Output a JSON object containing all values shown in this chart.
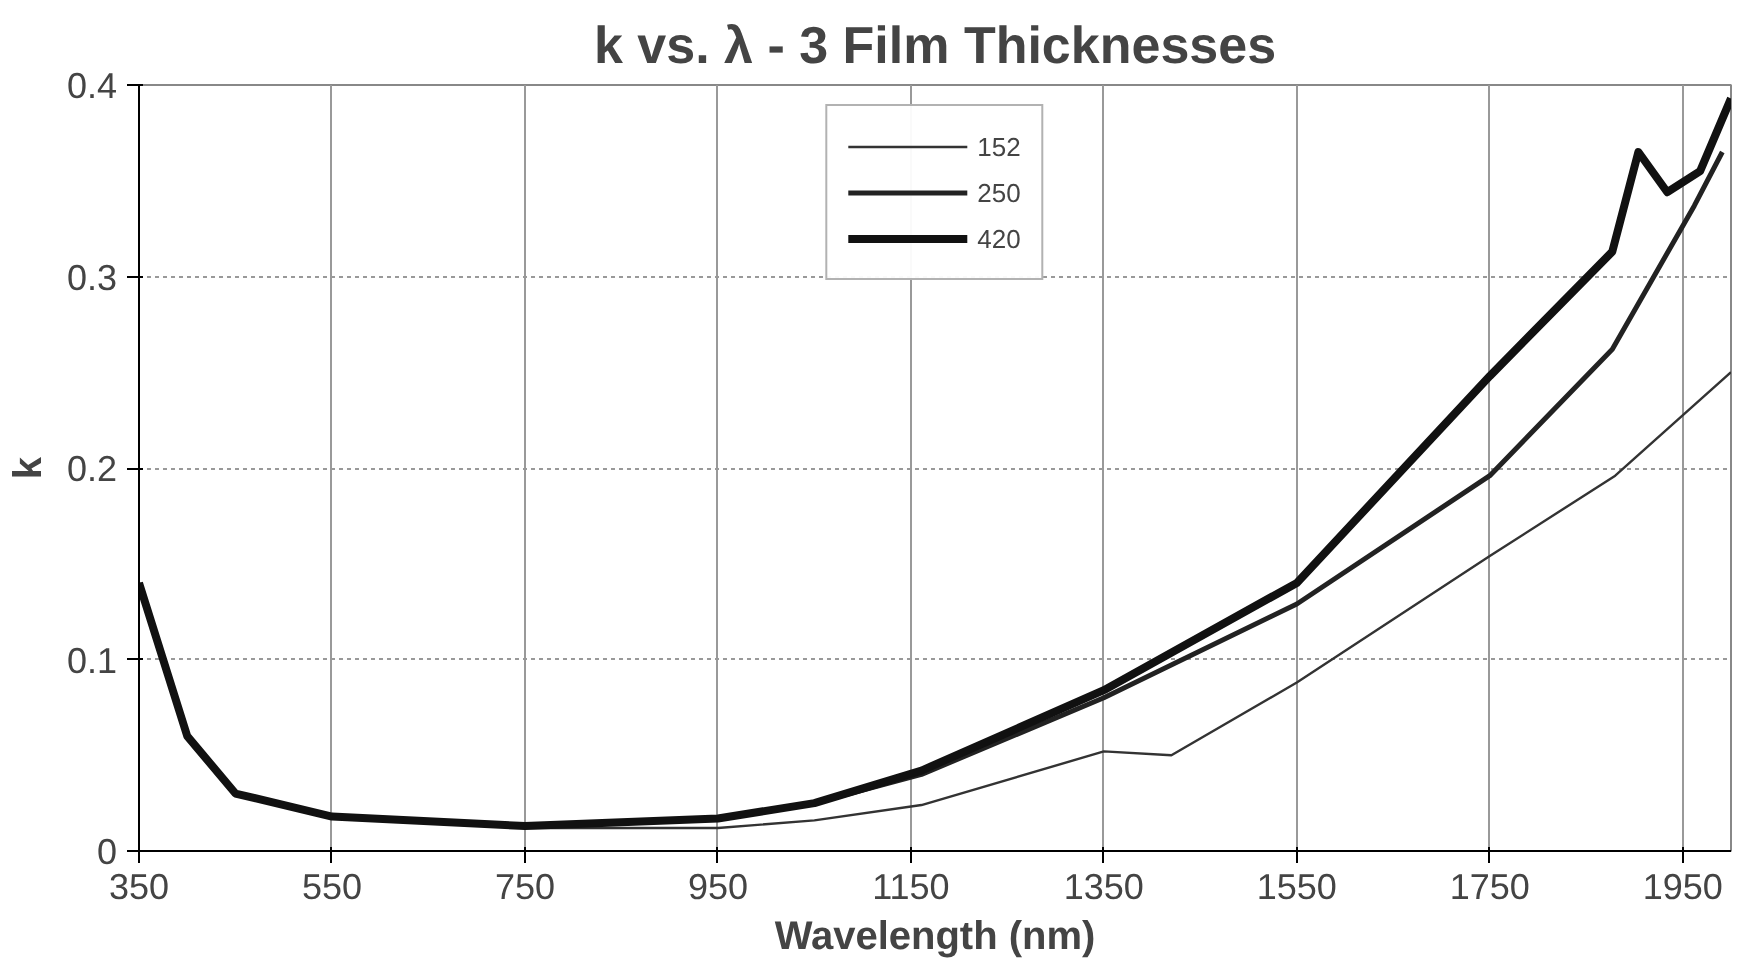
{
  "chart_data": {
    "type": "line",
    "title": "k vs. λ - 3 Film Thicknesses",
    "xlabel": "Wavelength (nm)",
    "ylabel": "k",
    "xlim": [
      350,
      2000
    ],
    "ylim": [
      0,
      0.4
    ],
    "xticks": [
      350,
      550,
      750,
      950,
      1150,
      1350,
      1550,
      1750,
      1950
    ],
    "yticks": [
      0,
      0.1,
      0.2,
      0.3,
      0.4
    ],
    "grid": true,
    "legend": "top",
    "marker": "none",
    "line_style": "solid",
    "series": [
      {
        "name": "152",
        "color": "#333333",
        "x": [
          350,
          400,
          450,
          550,
          750,
          950,
          1050,
          1161,
          1350,
          1420,
          1550,
          1750,
          1880,
          2000
        ],
        "values": [
          0.14,
          0.06,
          0.03,
          0.018,
          0.012,
          0.012,
          0.016,
          0.024,
          0.052,
          0.05,
          0.088,
          0.154,
          0.196,
          0.25
        ]
      },
      {
        "name": "250",
        "color": "#222222",
        "x": [
          350,
          400,
          450,
          550,
          750,
          950,
          1050,
          1161,
          1350,
          1550,
          1750,
          1877,
          1962,
          1991
        ],
        "values": [
          0.14,
          0.06,
          0.03,
          0.018,
          0.013,
          0.017,
          0.025,
          0.04,
          0.08,
          0.129,
          0.196,
          0.262,
          0.337,
          0.365
        ]
      },
      {
        "name": "420",
        "color": "#111111",
        "x": [
          350,
          400,
          450,
          550,
          750,
          950,
          1050,
          1161,
          1350,
          1550,
          1750,
          1877,
          1904,
          1934,
          1968,
          2000
        ],
        "values": [
          0.14,
          0.06,
          0.03,
          0.018,
          0.013,
          0.017,
          0.025,
          0.042,
          0.084,
          0.14,
          0.248,
          0.313,
          0.365,
          0.344,
          0.355,
          0.393
        ]
      }
    ]
  }
}
